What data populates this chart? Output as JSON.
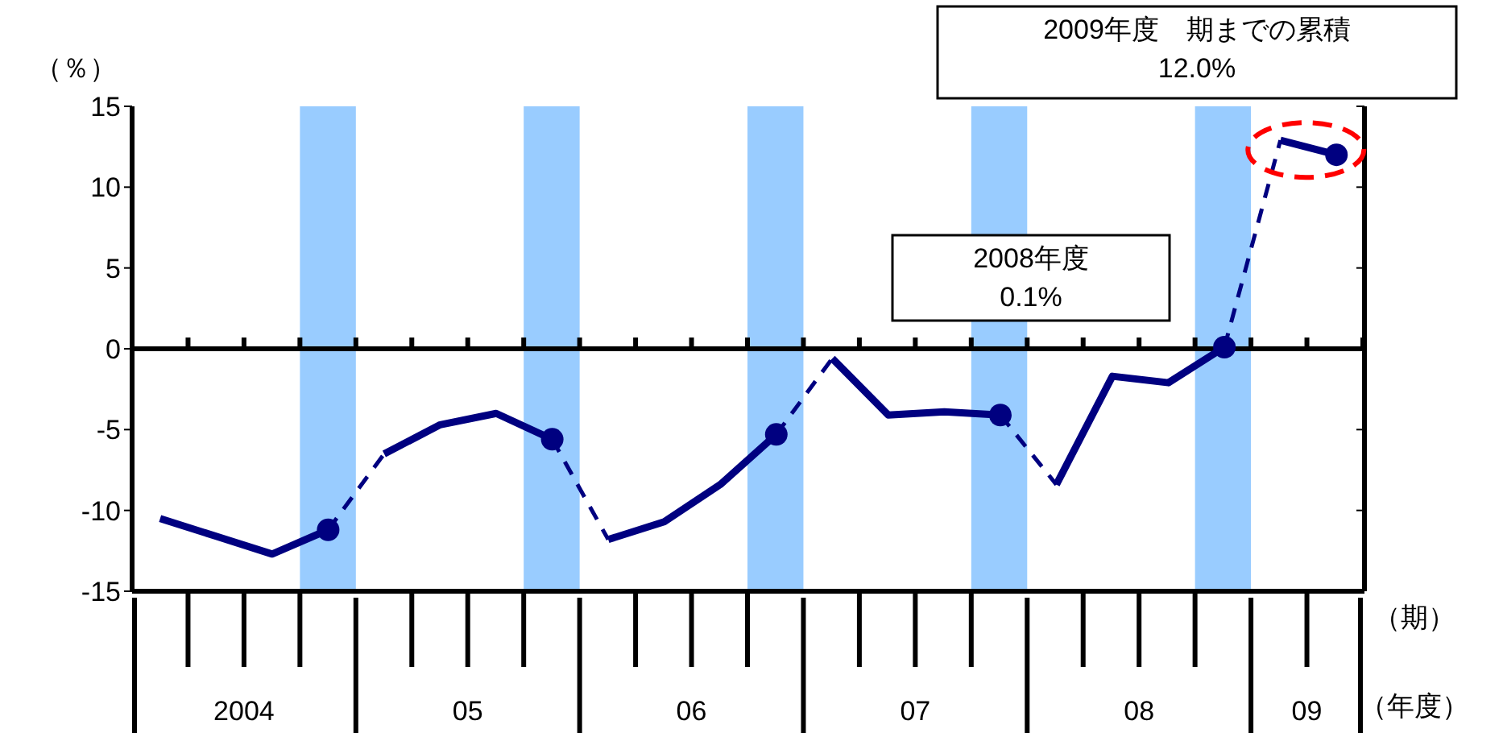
{
  "chart_data": {
    "type": "line",
    "ylabel": "（％）",
    "xlabel": "（期）",
    "categories": [
      null,
      null,
      null,
      null,
      null,
      null,
      null,
      null,
      null,
      null,
      null,
      null,
      null,
      null,
      null,
      null,
      null,
      null,
      null,
      null,
      null,
      null
    ],
    "ylim": [
      -15,
      15
    ],
    "yticks": [
      -15,
      -10,
      -5,
      0,
      5,
      10,
      15
    ],
    "series": [
      {
        "line_style": "solid",
        "color": "#000080",
        "values": [
          -10.5,
          -11.6,
          -12.7,
          -11.2,
          null,
          null,
          null,
          null,
          -11.8,
          -10.7,
          -8.4,
          -5.3,
          null,
          null,
          null,
          null,
          -8.4,
          -1.7,
          -2.1,
          0.1,
          null,
          null
        ]
      },
      {
        "line_style": "solid",
        "color": "#000080",
        "values": [
          null,
          null,
          null,
          null,
          -6.5,
          -4.7,
          -4.0,
          -5.6,
          null,
          null,
          null,
          null,
          -0.6,
          -4.1,
          -3.9,
          -4.1,
          null,
          null,
          null,
          null,
          12.9,
          12.0
        ]
      },
      {
        "line_style": "dashed",
        "color": "#000080",
        "values": [
          null,
          null,
          null,
          -11.2,
          -6.5,
          null,
          null,
          -5.6,
          -11.8,
          null,
          null,
          -5.3,
          -0.6,
          null,
          null,
          -4.1,
          -8.4,
          null,
          null,
          0.1,
          12.9,
          null
        ]
      },
      {
        "type": "scatter",
        "marker": "circle",
        "color": "#000080",
        "values": [
          null,
          null,
          null,
          -11.2,
          null,
          null,
          null,
          -5.6,
          null,
          null,
          null,
          -5.3,
          null,
          null,
          null,
          -4.1,
          null,
          null,
          null,
          0.1,
          null,
          12.0
        ]
      }
    ],
    "ref_lines": [
      {
        "axis": "y",
        "value": 0,
        "color": "#000000"
      }
    ],
    "annotations": [
      "2008年度\n0.1%",
      "2009年度　期までの累積\n12.0%",
      "（年度）",
      "2004",
      "05",
      "06",
      "07",
      "08",
      "09"
    ]
  }
}
